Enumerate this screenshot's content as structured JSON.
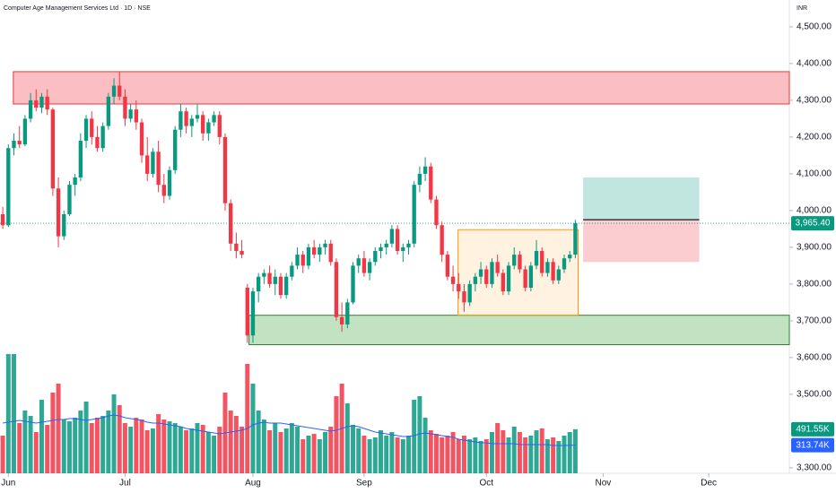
{
  "chart_data": {
    "type": "candlestick",
    "title": "Computer Age Management Services Ltd · 1D · NSE",
    "currency": "INR",
    "xlim": [
      -0.5,
      141.5
    ],
    "xticks": [
      {
        "value": 1,
        "label": "Jun"
      },
      {
        "value": 22,
        "label": "Jul"
      },
      {
        "value": 45,
        "label": "Aug"
      },
      {
        "value": 65,
        "label": "Sep"
      },
      {
        "value": 87,
        "label": "Oct"
      },
      {
        "value": 108,
        "label": "Nov"
      },
      {
        "value": 127,
        "label": "Dec"
      }
    ],
    "ylim": [
      3285,
      4573
    ],
    "yticks": [
      {
        "value": 4500,
        "label": "4,500.00"
      },
      {
        "value": 4400,
        "label": "4,400.00"
      },
      {
        "value": 4300,
        "label": "4,300.00"
      },
      {
        "value": 4200,
        "label": "4,200.00"
      },
      {
        "value": 4100,
        "label": "4,100.00"
      },
      {
        "value": 4000,
        "label": "4,000.00"
      },
      {
        "value": 3900,
        "label": "3,900.00"
      },
      {
        "value": 3800,
        "label": "3,800.00"
      },
      {
        "value": 3700,
        "label": "3,700.00"
      },
      {
        "value": 3600,
        "label": "3,600.00"
      },
      {
        "value": 3500,
        "label": "3,500.00"
      },
      {
        "value": 3300,
        "label": "3,300.00"
      }
    ],
    "up_color": "#089981",
    "down_color": "#f23645",
    "open": [
      3990,
      3960,
      4170,
      4190,
      4180,
      4250,
      4300,
      4280,
      4310,
      4275,
      4060,
      3930,
      3990,
      4070,
      4090,
      4190,
      4250,
      4200,
      4170,
      4230,
      4310,
      4340,
      4310,
      4250,
      4275,
      4240,
      4150,
      4100,
      4160,
      4070,
      4040,
      4110,
      4220,
      4270,
      4230,
      4250,
      4260,
      4210,
      4240,
      4260,
      4200,
      4020,
      3910,
      3890,
      3790,
      3660,
      3780,
      3820,
      3830,
      3800,
      3820,
      3770,
      3820,
      3850,
      3880,
      3850,
      3900,
      3880,
      3900,
      3910,
      3860,
      3710,
      3690,
      3750,
      3850,
      3870,
      3830,
      3860,
      3890,
      3900,
      3910,
      3950,
      3890,
      3900,
      3910,
      4070,
      4100,
      4120,
      4030,
      3960,
      3880,
      3820,
      3800,
      3780,
      3750,
      3800,
      3820,
      3840,
      3800,
      3860,
      3830,
      3780,
      3850,
      3880,
      3840,
      3790,
      3850,
      3890,
      3830,
      3860,
      3810,
      3840,
      3870,
      3880
    ],
    "high": [
      4010,
      4180,
      4210,
      4230,
      4260,
      4320,
      4330,
      4320,
      4330,
      4280,
      4090,
      4000,
      4080,
      4100,
      4210,
      4260,
      4270,
      4230,
      4240,
      4320,
      4360,
      4378,
      4330,
      4290,
      4300,
      4250,
      4200,
      4170,
      4190,
      4100,
      4120,
      4230,
      4290,
      4280,
      4260,
      4290,
      4270,
      4250,
      4270,
      4270,
      4210,
      4030,
      3940,
      3920,
      3800,
      3790,
      3830,
      3840,
      3850,
      3840,
      3830,
      3830,
      3860,
      3900,
      3890,
      3910,
      3920,
      3910,
      3920,
      3920,
      3870,
      3750,
      3760,
      3860,
      3880,
      3890,
      3870,
      3900,
      3910,
      3920,
      3960,
      3960,
      3910,
      3920,
      4080,
      4120,
      4145,
      4130,
      4040,
      3970,
      3890,
      3850,
      3830,
      3800,
      3810,
      3830,
      3860,
      3850,
      3870,
      3880,
      3840,
      3860,
      3900,
      3890,
      3850,
      3860,
      3920,
      3900,
      3870,
      3870,
      3850,
      3880,
      3890,
      3975
    ],
    "low": [
      3950,
      3955,
      4150,
      4170,
      4175,
      4240,
      4270,
      4265,
      4260,
      4040,
      3900,
      3920,
      3985,
      4040,
      4080,
      4170,
      4180,
      4160,
      4160,
      4220,
      4290,
      4300,
      4230,
      4240,
      4220,
      4130,
      4080,
      4090,
      4050,
      4020,
      4030,
      4100,
      4200,
      4210,
      4200,
      4240,
      4190,
      4190,
      4230,
      4180,
      4000,
      3890,
      3870,
      3870,
      3640,
      3640,
      3750,
      3800,
      3790,
      3770,
      3760,
      3760,
      3810,
      3840,
      3830,
      3840,
      3870,
      3860,
      3880,
      3850,
      3700,
      3670,
      3680,
      3745,
      3830,
      3820,
      3810,
      3850,
      3870,
      3880,
      3900,
      3880,
      3860,
      3880,
      3900,
      4050,
      4080,
      4020,
      3950,
      3860,
      3810,
      3780,
      3760,
      3725,
      3740,
      3780,
      3800,
      3790,
      3790,
      3820,
      3770,
      3770,
      3840,
      3830,
      3780,
      3780,
      3840,
      3820,
      3820,
      3800,
      3800,
      3830,
      3860,
      3870
    ],
    "close": [
      3960,
      4170,
      4190,
      4180,
      4250,
      4300,
      4280,
      4310,
      4275,
      4060,
      3930,
      3990,
      4070,
      4090,
      4190,
      4250,
      4200,
      4170,
      4230,
      4310,
      4340,
      4310,
      4250,
      4275,
      4240,
      4150,
      4100,
      4160,
      4070,
      4040,
      4110,
      4220,
      4270,
      4230,
      4250,
      4260,
      4210,
      4240,
      4260,
      4200,
      4020,
      3910,
      3890,
      3880,
      3660,
      3780,
      3820,
      3830,
      3800,
      3820,
      3770,
      3820,
      3850,
      3880,
      3850,
      3900,
      3880,
      3900,
      3910,
      3860,
      3710,
      3690,
      3750,
      3850,
      3870,
      3830,
      3860,
      3890,
      3900,
      3910,
      3950,
      3890,
      3900,
      3910,
      4070,
      4100,
      4120,
      4030,
      3960,
      3880,
      3820,
      3800,
      3780,
      3750,
      3800,
      3820,
      3840,
      3800,
      3860,
      3830,
      3780,
      3850,
      3880,
      3840,
      3790,
      3850,
      3890,
      3830,
      3860,
      3810,
      3840,
      3870,
      3880,
      3965.4
    ],
    "last_price": {
      "value": 3965.4,
      "label": "3,965.40"
    },
    "volume_ylim": [
      0,
      1400000
    ],
    "volume": [
      420000,
      1330000,
      1330000,
      560000,
      700000,
      640000,
      460000,
      820000,
      540000,
      900000,
      1000000,
      600000,
      580000,
      620000,
      700000,
      800000,
      560000,
      620000,
      640000,
      700000,
      880000,
      760000,
      560000,
      520000,
      620000,
      600000,
      480000,
      500000,
      660000,
      600000,
      580000,
      560000,
      520000,
      480000,
      500000,
      560000,
      540000,
      460000,
      420000,
      520000,
      900000,
      700000,
      640000,
      520000,
      1220000,
      1000000,
      700000,
      600000,
      480000,
      560000,
      460000,
      500000,
      560000,
      520000,
      380000,
      420000,
      440000,
      380000,
      460000,
      520000,
      860000,
      1000000,
      780000,
      540000,
      500000,
      420000,
      380000,
      400000,
      480000,
      420000,
      460000,
      400000,
      380000,
      420000,
      820000,
      860000,
      620000,
      480000,
      440000,
      400000,
      420000,
      460000,
      380000,
      420000,
      380000,
      400000,
      360000,
      380000,
      460000,
      560000,
      480000,
      400000,
      520000,
      460000,
      400000,
      420000,
      480000,
      500000,
      380000,
      400000,
      360000,
      420000,
      460000,
      491550
    ],
    "volume_ma": [
      560000,
      570000,
      580000,
      590000,
      580000,
      570000,
      560000,
      570000,
      580000,
      590000,
      600000,
      600000,
      610000,
      610000,
      600000,
      590000,
      600000,
      610000,
      620000,
      640000,
      650000,
      640000,
      620000,
      610000,
      600000,
      590000,
      570000,
      560000,
      560000,
      550000,
      540000,
      530000,
      520000,
      500000,
      490000,
      480000,
      470000,
      460000,
      450000,
      440000,
      450000,
      460000,
      470000,
      480000,
      500000,
      540000,
      560000,
      570000,
      560000,
      560000,
      560000,
      550000,
      540000,
      530000,
      520000,
      510000,
      500000,
      490000,
      480000,
      470000,
      480000,
      500000,
      520000,
      530000,
      520000,
      500000,
      480000,
      460000,
      450000,
      440000,
      430000,
      420000,
      410000,
      410000,
      420000,
      440000,
      450000,
      440000,
      430000,
      420000,
      410000,
      400000,
      380000,
      370000,
      360000,
      350000,
      340000,
      340000,
      330000,
      330000,
      330000,
      330000,
      330000,
      320000,
      320000,
      320000,
      320000,
      320000,
      320000,
      310000,
      310000,
      310000,
      312000,
      313740
    ],
    "volume_ma_color": "#2962ff",
    "volume_last": {
      "value": 491550,
      "label": "491.55K"
    },
    "volume_ma_last": {
      "value": 313740,
      "label": "313.74K"
    },
    "resistance_zone": {
      "from": 1.9,
      "to": 141.5,
      "low": 4290,
      "high": 4378
    },
    "support_zone": {
      "from": 44.3,
      "to": 141.5,
      "low": 3635,
      "high": 3715
    },
    "range_box": {
      "from": 81.9,
      "to": 103.5,
      "low": 3715,
      "high": 3948
    },
    "position": {
      "from": 104.4,
      "to": 125.3,
      "stop": 3860,
      "entry": 3975,
      "target": 4090
    }
  }
}
